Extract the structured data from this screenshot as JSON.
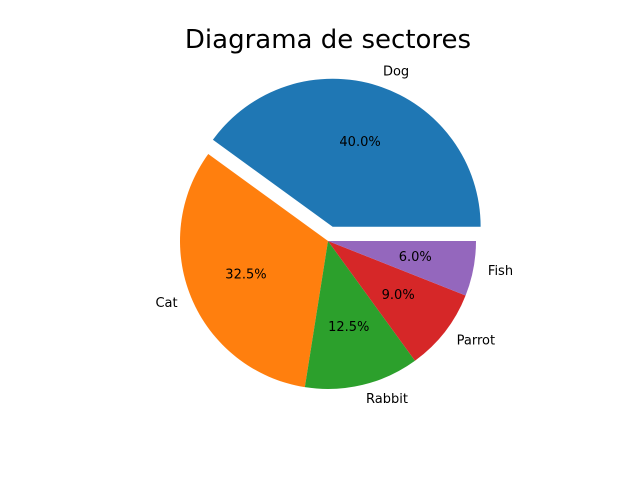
{
  "chart_data": {
    "type": "pie",
    "title": "Diagrama de sectores",
    "slices": [
      {
        "label": "Dog",
        "value": 40.0,
        "pct_label": "40.0%",
        "color": "#1f77b4",
        "explode": true
      },
      {
        "label": "Cat",
        "value": 32.5,
        "pct_label": "32.5%",
        "color": "#ff7f0e",
        "explode": false
      },
      {
        "label": "Rabbit",
        "value": 12.5,
        "pct_label": "12.5%",
        "color": "#2ca02c",
        "explode": false
      },
      {
        "label": "Parrot",
        "value": 9.0,
        "pct_label": "9.0%",
        "color": "#d62728",
        "explode": false
      },
      {
        "label": "Fish",
        "value": 6.0,
        "pct_label": "6.0%",
        "color": "#9467bd",
        "explode": false
      }
    ]
  }
}
